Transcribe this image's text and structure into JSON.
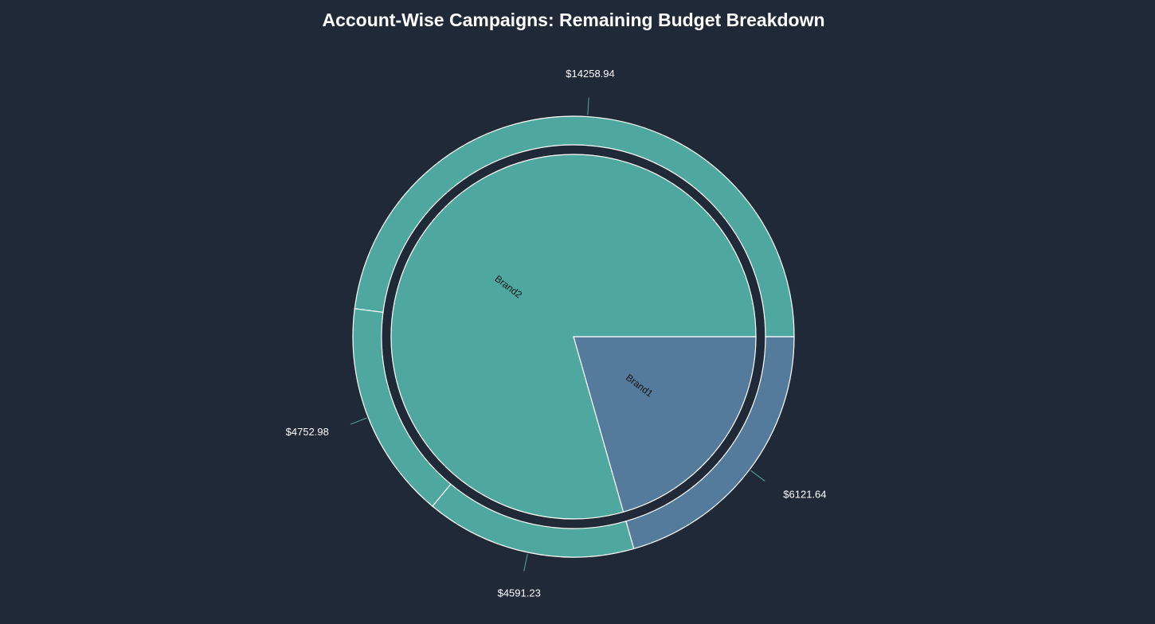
{
  "chart_data": {
    "type": "pie",
    "subtype": "sunburst",
    "title": "Account-Wise Campaigns: Remaining Budget Breakdown",
    "inner_ring": [
      {
        "name": "Brand1",
        "value": 6121.64,
        "color": "#547b9c"
      },
      {
        "name": "Brand2",
        "value": 23603.15,
        "color": "#4fa8a0"
      }
    ],
    "outer_ring": [
      {
        "parent": "Brand1",
        "label": "$6121.64",
        "value": 6121.64,
        "color": "#547b9c"
      },
      {
        "parent": "Brand2",
        "label": "$4591.23",
        "value": 4591.23,
        "color": "#4fa8a0"
      },
      {
        "parent": "Brand2",
        "label": "$4752.98",
        "value": 4752.98,
        "color": "#4fa8a0"
      },
      {
        "parent": "Brand2",
        "label": "$14258.94",
        "value": 14258.94,
        "color": "#4fa8a0"
      }
    ],
    "start_angle_deg": 0,
    "direction": "clockwise",
    "background": "#202938",
    "stroke_color": "#ffffff",
    "leader_color": "#4fa8a0"
  }
}
